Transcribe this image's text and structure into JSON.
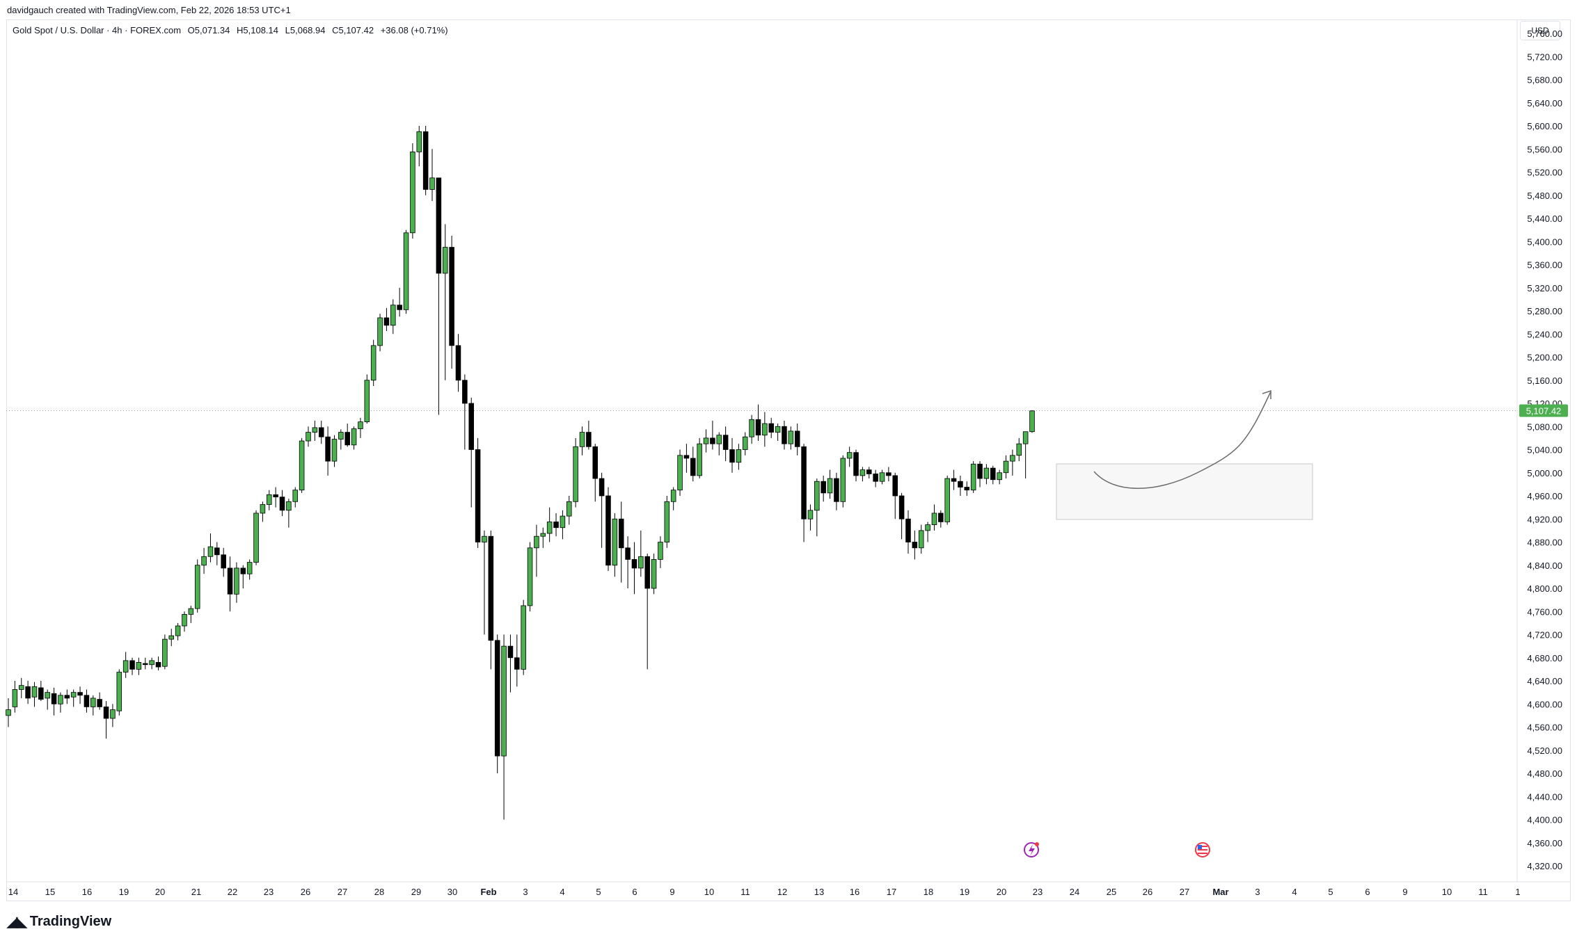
{
  "caption": "davidgauch created with TradingView.com, Feb 22, 2026 18:53 UTC+1",
  "header": {
    "symbol": "Gold Spot / U.S. Dollar · 4h · FOREX.com",
    "open": "O5,071.34",
    "high": "H5,108.14",
    "low": "L5,068.94",
    "close": "C5,107.42",
    "change": "+36.08 (+0.71%)"
  },
  "currency": "USD",
  "brand": "TradingView",
  "colors": {
    "up": "#4caf50",
    "down": "#000000",
    "price_tag": "#4caf50",
    "text": "#131722"
  },
  "chart_data": {
    "type": "candlestick",
    "yaxis_ticks": [
      "5,760.00",
      "5,720.00",
      "5,680.00",
      "5,640.00",
      "5,600.00",
      "5,560.00",
      "5,520.00",
      "5,480.00",
      "5,440.00",
      "5,400.00",
      "5,360.00",
      "5,320.00",
      "5,280.00",
      "5,240.00",
      "5,200.00",
      "5,160.00",
      "5,120.00",
      "5,080.00",
      "5,040.00",
      "5,000.00",
      "4,960.00",
      "4,920.00",
      "4,880.00",
      "4,840.00",
      "4,800.00",
      "4,760.00",
      "4,720.00",
      "4,680.00",
      "4,640.00",
      "4,600.00",
      "4,560.00",
      "4,520.00",
      "4,480.00",
      "4,440.00",
      "4,400.00",
      "4,360.00",
      "4,320.00"
    ],
    "ylim": [
      4320,
      5780
    ],
    "xaxis_ticks": [
      "14",
      "15",
      "16",
      "19",
      "20",
      "21",
      "22",
      "23",
      "26",
      "27",
      "28",
      "29",
      "30",
      "Feb",
      "3",
      "4",
      "5",
      "6",
      "9",
      "10",
      "11",
      "12",
      "13",
      "16",
      "17",
      "18",
      "19",
      "20",
      "23",
      "24",
      "25",
      "26",
      "27",
      "Mar",
      "3",
      "4",
      "5",
      "6",
      "9",
      "10",
      "11",
      "1"
    ],
    "last_price": 5107.42,
    "last_price_label": "5,107.42",
    "series": [
      {
        "name": "Gold Spot / U.S. Dollar",
        "ohlc": [
          [
            4580,
            4610,
            4560,
            4590
          ],
          [
            4595,
            4640,
            4585,
            4625
          ],
          [
            4625,
            4645,
            4610,
            4632
          ],
          [
            4630,
            4640,
            4600,
            4610
          ],
          [
            4612,
            4638,
            4595,
            4630
          ],
          [
            4628,
            4640,
            4605,
            4608
          ],
          [
            4610,
            4625,
            4590,
            4620
          ],
          [
            4618,
            4628,
            4580,
            4600
          ],
          [
            4600,
            4620,
            4585,
            4615
          ],
          [
            4615,
            4625,
            4600,
            4610
          ],
          [
            4612,
            4625,
            4595,
            4620
          ],
          [
            4620,
            4630,
            4600,
            4615
          ],
          [
            4615,
            4625,
            4585,
            4595
          ],
          [
            4595,
            4615,
            4580,
            4610
          ],
          [
            4608,
            4620,
            4590,
            4595
          ],
          [
            4595,
            4605,
            4540,
            4575
          ],
          [
            4575,
            4600,
            4560,
            4590
          ],
          [
            4588,
            4660,
            4580,
            4655
          ],
          [
            4655,
            4690,
            4645,
            4675
          ],
          [
            4675,
            4680,
            4650,
            4660
          ],
          [
            4660,
            4680,
            4650,
            4672
          ],
          [
            4670,
            4680,
            4660,
            4668
          ],
          [
            4668,
            4680,
            4660,
            4675
          ],
          [
            4672,
            4682,
            4658,
            4664
          ],
          [
            4665,
            4720,
            4660,
            4712
          ],
          [
            4712,
            4730,
            4700,
            4718
          ],
          [
            4718,
            4740,
            4710,
            4735
          ],
          [
            4735,
            4760,
            4725,
            4755
          ],
          [
            4755,
            4770,
            4740,
            4765
          ],
          [
            4765,
            4850,
            4758,
            4840
          ],
          [
            4840,
            4870,
            4825,
            4855
          ],
          [
            4855,
            4895,
            4845,
            4872
          ],
          [
            4870,
            4880,
            4840,
            4858
          ],
          [
            4858,
            4870,
            4820,
            4835
          ],
          [
            4835,
            4855,
            4760,
            4790
          ],
          [
            4790,
            4845,
            4775,
            4835
          ],
          [
            4835,
            4840,
            4800,
            4825
          ],
          [
            4825,
            4850,
            4815,
            4845
          ],
          [
            4845,
            4935,
            4840,
            4930
          ],
          [
            4930,
            4950,
            4915,
            4945
          ],
          [
            4945,
            4970,
            4935,
            4962
          ],
          [
            4962,
            4975,
            4940,
            4958
          ],
          [
            4958,
            4970,
            4925,
            4935
          ],
          [
            4935,
            4955,
            4905,
            4950
          ],
          [
            4950,
            4975,
            4940,
            4970
          ],
          [
            4970,
            5060,
            4965,
            5055
          ],
          [
            5055,
            5080,
            5045,
            5070
          ],
          [
            5070,
            5090,
            5055,
            5078
          ],
          [
            5078,
            5090,
            5050,
            5062
          ],
          [
            5062,
            5080,
            4995,
            5020
          ],
          [
            5020,
            5065,
            5010,
            5058
          ],
          [
            5058,
            5075,
            5040,
            5070
          ],
          [
            5070,
            5085,
            5045,
            5048
          ],
          [
            5048,
            5080,
            5040,
            5076
          ],
          [
            5076,
            5095,
            5060,
            5088
          ],
          [
            5088,
            5170,
            5085,
            5160
          ],
          [
            5160,
            5230,
            5150,
            5220
          ],
          [
            5220,
            5275,
            5210,
            5268
          ],
          [
            5268,
            5285,
            5245,
            5255
          ],
          [
            5255,
            5300,
            5240,
            5290
          ],
          [
            5290,
            5320,
            5270,
            5282
          ],
          [
            5282,
            5420,
            5275,
            5415
          ],
          [
            5415,
            5570,
            5405,
            5555
          ],
          [
            5555,
            5600,
            5530,
            5590
          ],
          [
            5590,
            5600,
            5480,
            5490
          ],
          [
            5490,
            5560,
            5470,
            5510
          ],
          [
            5510,
            5510,
            5100,
            5345
          ],
          [
            5345,
            5430,
            5160,
            5390
          ],
          [
            5390,
            5410,
            5180,
            5220
          ],
          [
            5220,
            5240,
            5140,
            5160
          ],
          [
            5160,
            5170,
            5040,
            5120
          ],
          [
            5120,
            5130,
            4940,
            5040
          ],
          [
            5040,
            5060,
            4870,
            4880
          ],
          [
            4880,
            4900,
            4720,
            4890
          ],
          [
            4890,
            4900,
            4660,
            4710
          ],
          [
            4710,
            4720,
            4480,
            4510
          ],
          [
            4510,
            4720,
            4400,
            4700
          ],
          [
            4700,
            4720,
            4620,
            4680
          ],
          [
            4680,
            4720,
            4630,
            4660
          ],
          [
            4660,
            4780,
            4650,
            4770
          ],
          [
            4770,
            4880,
            4760,
            4870
          ],
          [
            4870,
            4910,
            4820,
            4890
          ],
          [
            4890,
            4905,
            4870,
            4895
          ],
          [
            4895,
            4940,
            4880,
            4915
          ],
          [
            4915,
            4930,
            4890,
            4905
          ],
          [
            4905,
            4935,
            4885,
            4925
          ],
          [
            4925,
            4960,
            4910,
            4950
          ],
          [
            4950,
            5060,
            4940,
            5045
          ],
          [
            5045,
            5080,
            5030,
            5070
          ],
          [
            5070,
            5090,
            5040,
            5045
          ],
          [
            5045,
            5050,
            4950,
            4990
          ],
          [
            4990,
            5000,
            4870,
            4960
          ],
          [
            4960,
            4975,
            4830,
            4840
          ],
          [
            4840,
            4930,
            4820,
            4920
          ],
          [
            4920,
            4950,
            4810,
            4870
          ],
          [
            4870,
            4890,
            4800,
            4850
          ],
          [
            4850,
            4880,
            4790,
            4835
          ],
          [
            4835,
            4900,
            4820,
            4855
          ],
          [
            4855,
            4860,
            4660,
            4800
          ],
          [
            4800,
            4860,
            4790,
            4850
          ],
          [
            4850,
            4890,
            4835,
            4880
          ],
          [
            4880,
            4960,
            4870,
            4950
          ],
          [
            4950,
            4975,
            4935,
            4970
          ],
          [
            4970,
            5040,
            4960,
            5030
          ],
          [
            5030,
            5050,
            5000,
            5025
          ],
          [
            5025,
            5045,
            4985,
            4995
          ],
          [
            4995,
            5060,
            4990,
            5050
          ],
          [
            5050,
            5075,
            5035,
            5060
          ],
          [
            5060,
            5090,
            5040,
            5050
          ],
          [
            5050,
            5070,
            5030,
            5065
          ],
          [
            5065,
            5080,
            5020,
            5040
          ],
          [
            5040,
            5060,
            5000,
            5018
          ],
          [
            5018,
            5050,
            5005,
            5040
          ],
          [
            5040,
            5070,
            5030,
            5062
          ],
          [
            5062,
            5100,
            5050,
            5092
          ],
          [
            5092,
            5118,
            5055,
            5065
          ],
          [
            5065,
            5105,
            5045,
            5085
          ],
          [
            5085,
            5095,
            5060,
            5070
          ],
          [
            5070,
            5085,
            5055,
            5080
          ],
          [
            5080,
            5090,
            5040,
            5050
          ],
          [
            5050,
            5080,
            5040,
            5072
          ],
          [
            5072,
            5085,
            5030,
            5045
          ],
          [
            5045,
            5050,
            4880,
            4920
          ],
          [
            4920,
            4945,
            4900,
            4935
          ],
          [
            4935,
            4990,
            4890,
            4985
          ],
          [
            4985,
            4995,
            4950,
            4965
          ],
          [
            4965,
            5005,
            4955,
            4990
          ],
          [
            4990,
            5000,
            4935,
            4950
          ],
          [
            4950,
            5030,
            4940,
            5025
          ],
          [
            5025,
            5045,
            5010,
            5035
          ],
          [
            5035,
            5040,
            4985,
            4995
          ],
          [
            4995,
            5010,
            4985,
            5005
          ],
          [
            5005,
            5010,
            4990,
            4998
          ],
          [
            4998,
            5005,
            4975,
            4985
          ],
          [
            4985,
            5005,
            4980,
            5000
          ],
          [
            5000,
            5010,
            4985,
            4995
          ],
          [
            4995,
            5000,
            4920,
            4960
          ],
          [
            4960,
            4965,
            4885,
            4920
          ],
          [
            4920,
            4935,
            4860,
            4880
          ],
          [
            4880,
            4900,
            4850,
            4870
          ],
          [
            4870,
            4910,
            4860,
            4900
          ],
          [
            4900,
            4915,
            4880,
            4910
          ],
          [
            4910,
            4945,
            4900,
            4930
          ],
          [
            4930,
            4935,
            4905,
            4915
          ],
          [
            4915,
            4995,
            4910,
            4990
          ],
          [
            4990,
            5005,
            4970,
            4985
          ],
          [
            4985,
            4995,
            4960,
            4975
          ],
          [
            4975,
            4985,
            4960,
            4970
          ],
          [
            4970,
            5020,
            4965,
            5015
          ],
          [
            5015,
            5020,
            4975,
            4990
          ],
          [
            4990,
            5015,
            4980,
            5008
          ],
          [
            5008,
            5012,
            4980,
            4988
          ],
          [
            4988,
            5005,
            4980,
            5000
          ],
          [
            5000,
            5030,
            4990,
            5020
          ],
          [
            5020,
            5040,
            4995,
            5030
          ],
          [
            5030,
            5060,
            5020,
            5050
          ],
          [
            5050,
            5070,
            4990,
            5071
          ],
          [
            5071,
            5108,
            5069,
            5107
          ]
        ]
      }
    ],
    "annotations": [
      {
        "type": "rectangle",
        "label": ""
      },
      {
        "type": "curved-arrow",
        "label": ""
      }
    ],
    "event_markers": [
      "lightning-icon",
      "us-flag-icon"
    ]
  }
}
